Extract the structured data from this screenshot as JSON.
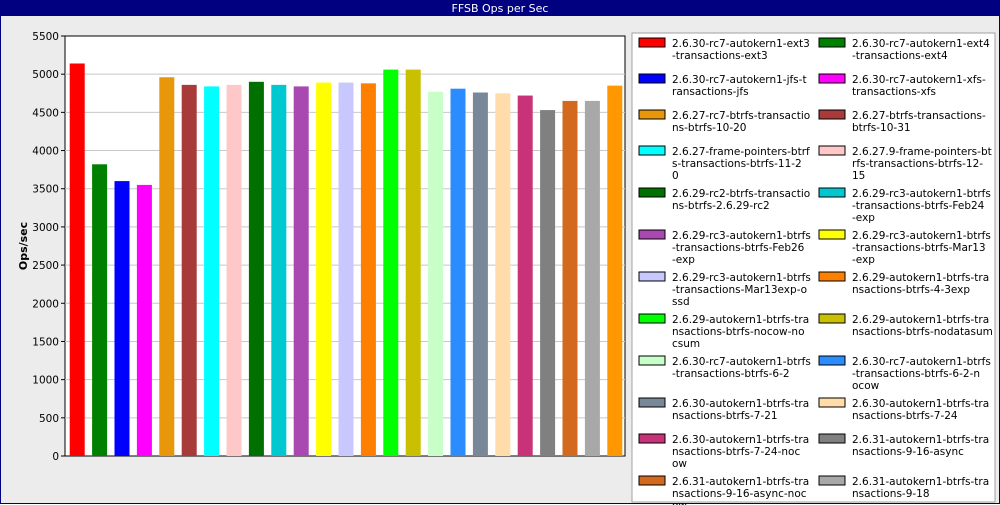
{
  "chart_data": {
    "type": "bar",
    "title": "FFSB Ops per Sec",
    "xlabel": "",
    "ylabel": "Ops/sec",
    "ylim": [
      0,
      5500
    ],
    "yticks": [
      0,
      500,
      1000,
      1500,
      2000,
      2500,
      3000,
      3500,
      4000,
      4500,
      5000,
      5500
    ],
    "grid": true,
    "legend_position": "right",
    "series": [
      {
        "label_lines": [
          "2.6.30-rc7-autokern1-ext3",
          "-transactions-ext3"
        ],
        "value": 5140,
        "color": "#ff0000"
      },
      {
        "label_lines": [
          "2.6.30-rc7-autokern1-ext4",
          "-transactions-ext4"
        ],
        "value": 3820,
        "color": "#008000"
      },
      {
        "label_lines": [
          "2.6.30-rc7-autokern1-jfs-t",
          "ransactions-jfs"
        ],
        "value": 3600,
        "color": "#0000ff"
      },
      {
        "label_lines": [
          "2.6.30-rc7-autokern1-xfs-",
          "transactions-xfs"
        ],
        "value": 3550,
        "color": "#ff00ff"
      },
      {
        "label_lines": [
          "2.6.27-rc7-btrfs-transactio",
          "ns-btrfs-10-20"
        ],
        "value": 4960,
        "color": "#e8960a"
      },
      {
        "label_lines": [
          "2.6.27-btrfs-transactions-",
          "btrfs-10-31"
        ],
        "value": 4860,
        "color": "#a83a3a"
      },
      {
        "label_lines": [
          "2.6.27-frame-pointers-btrf",
          "s-transactions-btrfs-11-2",
          "0"
        ],
        "value": 4840,
        "color": "#00ffff"
      },
      {
        "label_lines": [
          "2.6.27.9-frame-pointers-bt",
          "rfs-transactions-btrfs-12-",
          "15"
        ],
        "value": 4860,
        "color": "#ffc8c8"
      },
      {
        "label_lines": [
          "2.6.29-rc2-btrfs-transactio",
          "ns-btrfs-2.6.29-rc2"
        ],
        "value": 4900,
        "color": "#007000"
      },
      {
        "label_lines": [
          "2.6.29-rc3-autokern1-btrfs",
          "-transactions-btrfs-Feb24",
          "-exp"
        ],
        "value": 4860,
        "color": "#00c8d0"
      },
      {
        "label_lines": [
          "2.6.29-rc3-autokern1-btrfs",
          "-transactions-btrfs-Feb26",
          "-exp"
        ],
        "value": 4840,
        "color": "#a848b0"
      },
      {
        "label_lines": [
          "2.6.29-rc3-autokern1-btrfs",
          "-transactions-btrfs-Mar13",
          "-exp"
        ],
        "value": 4890,
        "color": "#ffff00"
      },
      {
        "label_lines": [
          "2.6.29-rc3-autokern1-btrfs",
          "-transactions-Mar13exp-o",
          "ssd"
        ],
        "value": 4890,
        "color": "#c8c8ff"
      },
      {
        "label_lines": [
          "2.6.29-autokern1-btrfs-tra",
          "nsactions-btrfs-4-3exp"
        ],
        "value": 4880,
        "color": "#ff8000"
      },
      {
        "label_lines": [
          "2.6.29-autokern1-btrfs-tra",
          "nsactions-btrfs-nocow-no",
          "csum"
        ],
        "value": 5060,
        "color": "#00ff00"
      },
      {
        "label_lines": [
          "2.6.29-autokern1-btrfs-tra",
          "nsactions-btrfs-nodatasum"
        ],
        "value": 5060,
        "color": "#c8c000"
      },
      {
        "label_lines": [
          "2.6.30-rc7-autokern1-btrfs",
          "-transactions-btrfs-6-2"
        ],
        "value": 4770,
        "color": "#c8ffc8"
      },
      {
        "label_lines": [
          "2.6.30-rc7-autokern1-btrfs",
          "-transactions-btrfs-6-2-n",
          "ocow"
        ],
        "value": 4810,
        "color": "#2a8cff"
      },
      {
        "label_lines": [
          "2.6.30-autokern1-btrfs-tra",
          "nsactions-btrfs-7-21"
        ],
        "value": 4760,
        "color": "#788898"
      },
      {
        "label_lines": [
          "2.6.30-autokern1-btrfs-tra",
          "nsactions-btrfs-7-24"
        ],
        "value": 4750,
        "color": "#ffdcaa"
      },
      {
        "label_lines": [
          "2.6.30-autokern1-btrfs-tra",
          "nsactions-btrfs-7-24-noc",
          "ow"
        ],
        "value": 4720,
        "color": "#c83278"
      },
      {
        "label_lines": [
          "2.6.31-autokern1-btrfs-tra",
          "nsactions-9-16-async"
        ],
        "value": 4530,
        "color": "#808080"
      },
      {
        "label_lines": [
          "2.6.31-autokern1-btrfs-tra",
          "nsactions-9-16-async-noc",
          "ow"
        ],
        "value": 4650,
        "color": "#d2691e"
      },
      {
        "label_lines": [
          "2.6.31-autokern1-btrfs-tra",
          "nsactions-9-18"
        ],
        "value": 4650,
        "color": "#a8a8a8"
      },
      {
        "label_lines": [],
        "value": 4850,
        "color": "#ff9800"
      }
    ]
  }
}
